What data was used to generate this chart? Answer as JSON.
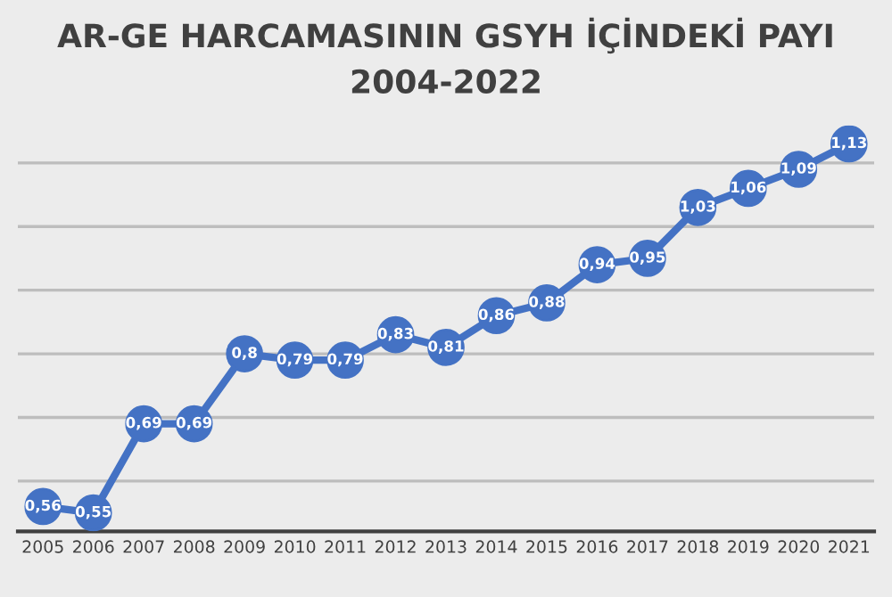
{
  "chart_data": {
    "type": "line",
    "title": "AR-GE HARCAMASININ GSYH İÇİNDEKİ PAYI\n2004-2022",
    "categories": [
      "2005",
      "2006",
      "2007",
      "2008",
      "2009",
      "2010",
      "2011",
      "2012",
      "2013",
      "2014",
      "2015",
      "2016",
      "2017",
      "2018",
      "2019",
      "2020",
      "2021"
    ],
    "series": [
      {
        "color": "#4472c4",
        "values": [
          0.56,
          0.55,
          0.69,
          0.69,
          0.8,
          0.79,
          0.79,
          0.83,
          0.81,
          0.86,
          0.88,
          0.94,
          0.95,
          1.03,
          1.06,
          1.09,
          1.13
        ],
        "value_labels": [
          "0,56",
          "0,55",
          "0,69",
          "0,69",
          "0,8",
          "0,79",
          "0,79",
          "0,83",
          "0,81",
          "0,86",
          "0,88",
          "0,94",
          "0,95",
          "1,03",
          "1,06",
          "1,09",
          "1,13"
        ]
      }
    ],
    "grid": "y",
    "marker": "circle",
    "line_style": "solid",
    "tick_labels": "x"
  }
}
